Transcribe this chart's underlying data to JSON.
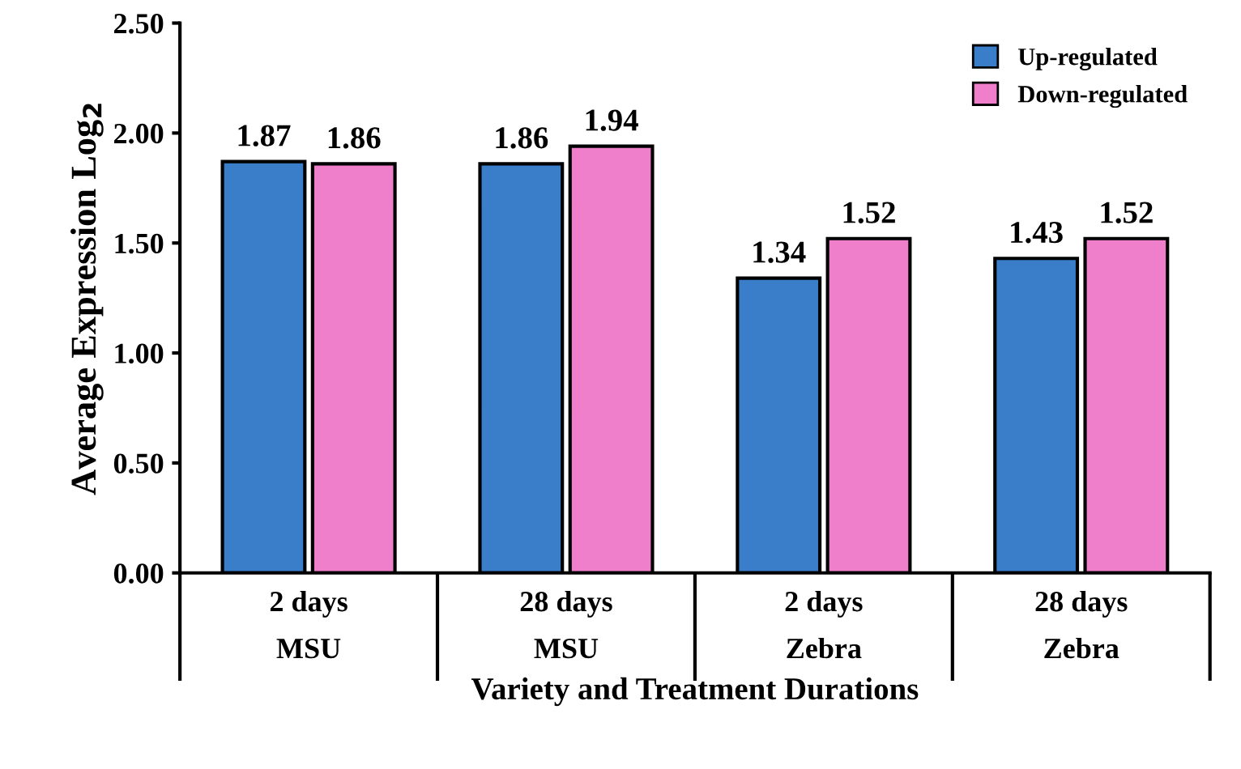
{
  "chart_data": {
    "type": "bar",
    "xlabel": "Variety and Treatment Durations",
    "ylabel": "Average Expression Log$_{2}$",
    "categories": [
      "2 days\nMSU",
      "28 days\nMSU",
      "2 days\nZebra",
      "28 days\nZebra"
    ],
    "series": [
      {
        "name": "Up-regulated",
        "color": "#3a7dc9",
        "values": [
          1.87,
          1.86,
          1.34,
          1.43
        ]
      },
      {
        "name": "Down-regulated",
        "color": "#ef7fca",
        "values": [
          1.86,
          1.94,
          1.52,
          1.52
        ]
      }
    ],
    "ylim": [
      0,
      2.5
    ],
    "yticks": [
      {
        "value": 0,
        "label": "0.00"
      },
      {
        "value": 0.5,
        "label": "0.50"
      },
      {
        "value": 1,
        "label": "1.00"
      },
      {
        "value": 1.5,
        "label": "1.50"
      },
      {
        "value": 2,
        "label": "2.00"
      },
      {
        "value": 2.5,
        "label": "2.50"
      }
    ],
    "data_labels": true,
    "grid": false,
    "legend": "top right"
  }
}
